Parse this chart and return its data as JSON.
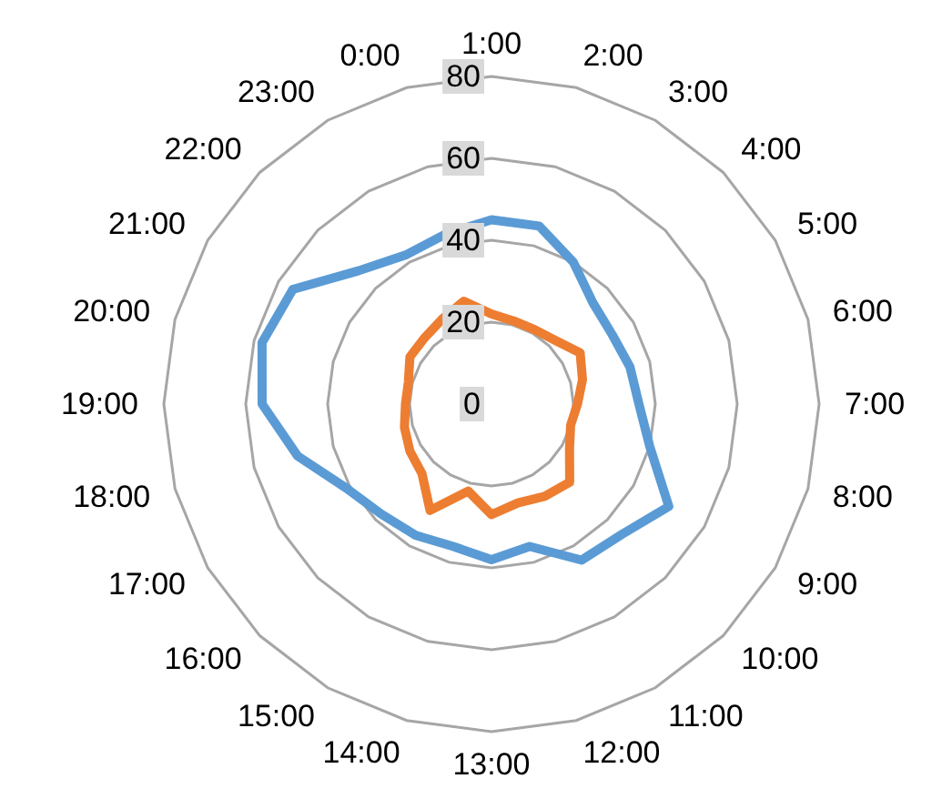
{
  "chart_data": {
    "type": "radar",
    "categories": [
      "1:00",
      "2:00",
      "3:00",
      "4:00",
      "5:00",
      "6:00",
      "7:00",
      "8:00",
      "9:00",
      "10:00",
      "11:00",
      "12:00",
      "13:00",
      "14:00",
      "15:00",
      "16:00",
      "17:00",
      "18:00",
      "19:00",
      "20:00",
      "21:00",
      "22:00",
      "23:00",
      "0:00"
    ],
    "ylim": [
      0,
      80
    ],
    "yticks": [
      0,
      20,
      40,
      60,
      80
    ],
    "grid": true,
    "line_style": "solid",
    "marker": "none",
    "series": [
      {
        "color": "#5b9bd5",
        "values": [
          45,
          45,
          40,
          35,
          34,
          35,
          36,
          40,
          50,
          45,
          44,
          36,
          38,
          36,
          37,
          38,
          41,
          49,
          56,
          58,
          56,
          46,
          42,
          43
        ]
      },
      {
        "color": "#ed7d31",
        "values": [
          22,
          21,
          21,
          22,
          25,
          23,
          21,
          20,
          22,
          27,
          26,
          25,
          27,
          22,
          30,
          24,
          23,
          22,
          21,
          21,
          23,
          23,
          24,
          26
        ]
      }
    ]
  }
}
